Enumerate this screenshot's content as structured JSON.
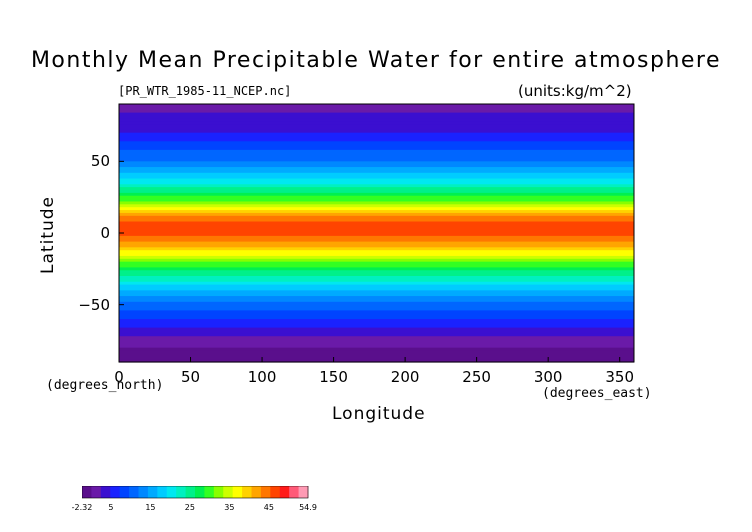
{
  "header": {
    "title": "Monthly Mean Precipitable Water for entire atmosphere",
    "file": "[PR_WTR_1985-11_NCEP.nc]",
    "units": "(units:kg/m^2)"
  },
  "chart_data": {
    "type": "heatmap",
    "title": "Monthly Mean Precipitable Water for entire atmosphere",
    "xlabel": "Longitude",
    "ylabel": "Latitude",
    "x_unit_label": "(degrees_east)",
    "y_unit_label": "(degrees_north)",
    "xlim": [
      0,
      360
    ],
    "ylim": [
      -90,
      90
    ],
    "x_ticks": [
      "0",
      "50",
      "100",
      "150",
      "200",
      "250",
      "300",
      "350"
    ],
    "y_ticks": [
      "50",
      "0",
      "−50"
    ],
    "latitude_band_values": [
      {
        "lat": 90,
        "value": 2
      },
      {
        "lat": 75,
        "value": 3
      },
      {
        "lat": 62,
        "value": 8
      },
      {
        "lat": 50,
        "value": 12
      },
      {
        "lat": 40,
        "value": 18
      },
      {
        "lat": 28,
        "value": 26
      },
      {
        "lat": 18,
        "value": 36
      },
      {
        "lat": 8,
        "value": 46
      },
      {
        "lat": 0,
        "value": 46
      },
      {
        "lat": -10,
        "value": 40
      },
      {
        "lat": -22,
        "value": 30
      },
      {
        "lat": -35,
        "value": 20
      },
      {
        "lat": -48,
        "value": 12
      },
      {
        "lat": -58,
        "value": 8
      },
      {
        "lat": -68,
        "value": 4
      },
      {
        "lat": -80,
        "value": 0
      },
      {
        "lat": -90,
        "value": -2
      }
    ],
    "colorbar": {
      "min": -2.32,
      "max": 54.9,
      "labels": [
        "-2.32",
        "5",
        "15",
        "25",
        "35",
        "45",
        "54.9"
      ],
      "colors": [
        "#5a0f8c",
        "#6a1aa8",
        "#3b0fd0",
        "#1a22ff",
        "#0044ff",
        "#0066ff",
        "#0088ff",
        "#00aaff",
        "#00ccff",
        "#00e8f0",
        "#00f0c0",
        "#00f08a",
        "#00f050",
        "#33ff22",
        "#88ff00",
        "#ccff00",
        "#ffff00",
        "#ffd200",
        "#ffa500",
        "#ff7700",
        "#ff4400",
        "#ff1a1a",
        "#ff5a78",
        "#ff9ab4"
      ]
    }
  }
}
